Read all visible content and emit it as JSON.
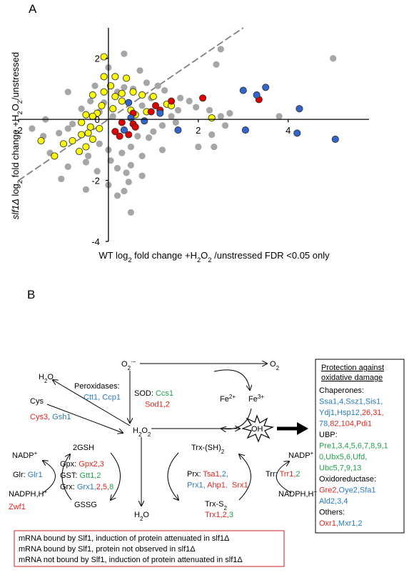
{
  "panel_labels": [
    "A",
    "B"
  ],
  "chart_data": {
    "type": "scatter",
    "x_label": [
      "WT log",
      "2",
      " fold change +H",
      "2",
      "O",
      "2",
      " /unstressed FDR <0.05 only"
    ],
    "y_label": [
      "slf1Δ",
      " log",
      "2",
      " fold change +H",
      "2",
      "O",
      "2",
      "/unstressed"
    ],
    "xlim": [
      -2,
      5.8
    ],
    "ylim": [
      -4,
      3
    ],
    "xticks": [
      -2,
      2,
      4
    ],
    "yticks": [
      -4,
      -2,
      0,
      2
    ],
    "identity_line": true,
    "series": [
      {
        "color": "#a6a6a6",
        "x": [
          5.0,
          2.5,
          2.4,
          0.0,
          0.35,
          0.7,
          0.35,
          0.85,
          1.1,
          -0.3,
          -0.9,
          -0.4,
          -0.6,
          0.2,
          0.55,
          1.25,
          1.6,
          1.8,
          1.95,
          2.25,
          2.5,
          2.7,
          2.6,
          1.5,
          1.2,
          1.0,
          0.9,
          1.4,
          0.75,
          -0.2,
          -0.8,
          -1.4,
          -1.7,
          -0.9,
          -1.1,
          -1.45,
          -0.2,
          0.0,
          0.3,
          0.5,
          0.75,
          0.05,
          0.2,
          0.5,
          0.4,
          0.75,
          0.45,
          0.0,
          -0.25,
          -0.5,
          -0.9,
          -1.05,
          -1.3,
          0.2,
          0.5,
          -0.5,
          1.2,
          2.0,
          2.3,
          2.35,
          0.65,
          -0.1,
          0.1,
          0.95,
          1.55,
          3.8,
          0.35,
          -0.45
        ],
        "values": [
          2.0,
          2.3,
          1.8,
          1.7,
          2.15,
          1.6,
          1.05,
          1.2,
          1.1,
          1.1,
          0.9,
          0.6,
          0.35,
          0.9,
          1.0,
          0.95,
          0.7,
          0.6,
          0.4,
          0.3,
          0.1,
          0.2,
          -0.2,
          -0.1,
          -0.2,
          -0.4,
          -0.6,
          0.1,
          0.45,
          0.25,
          -0.15,
          0.0,
          -0.3,
          -0.3,
          -0.45,
          -0.55,
          -0.8,
          -1.0,
          -1.1,
          -0.9,
          -1.2,
          -1.35,
          -1.6,
          -1.5,
          -1.75,
          -1.85,
          -2.05,
          -2.15,
          -1.7,
          -1.4,
          -1.55,
          -1.95,
          -1.1,
          -2.5,
          -3.05,
          -2.3,
          -1.0,
          -0.9,
          -0.5,
          -0.9,
          -0.55,
          0.55,
          0.1,
          0.7,
          0.3,
          0.1,
          -2.35,
          -1.2
        ]
      },
      {
        "color": "#ffff00",
        "edgecolor": "#333333",
        "x": [
          -0.1,
          0.15,
          -0.1,
          0.4,
          0.05,
          0.55,
          0.3,
          0.75,
          1.0,
          1.3,
          1.4,
          -0.35,
          -0.1,
          0.15,
          0.3,
          -0.15,
          0.1,
          -0.25,
          -0.5,
          -0.35,
          -0.6,
          -0.4,
          -0.2,
          -0.45,
          -0.6,
          -0.35,
          -0.8,
          -1.0,
          -1.5,
          -0.5,
          -0.65,
          -1.2,
          2.3,
          0.6,
          0.85,
          0.5
        ],
        "values": [
          2.05,
          1.4,
          1.4,
          1.35,
          1.1,
          0.9,
          0.85,
          0.8,
          0.75,
          0.5,
          0.45,
          0.8,
          0.9,
          0.75,
          0.6,
          0.45,
          0.35,
          0.2,
          0.15,
          0.1,
          -0.1,
          -0.25,
          -0.3,
          -0.45,
          -0.5,
          -0.65,
          -0.7,
          -0.8,
          -0.7,
          -0.9,
          -1.05,
          -1.2,
          0.05,
          0.15,
          0.25,
          0.3
        ]
      },
      {
        "color": "#e00000",
        "edgecolor": "#333333",
        "x": [
          2.1,
          0.95,
          1.05,
          1.15,
          0.55,
          0.3,
          0.55,
          0.6,
          0.15,
          0.25,
          0.45,
          3.35,
          1.4
        ],
        "values": [
          0.7,
          0.25,
          0.45,
          0.3,
          0.2,
          -0.1,
          -0.15,
          -0.25,
          -0.4,
          -0.55,
          -0.5,
          0.65,
          0.6
        ]
      },
      {
        "color": "#3366cc",
        "edgecolor": "#333333",
        "x": [
          3.0,
          3.5,
          3.3,
          4.25,
          3.05,
          4.2,
          5.05,
          1.55,
          1.15,
          0.45,
          0.8,
          0.5,
          0.35
        ],
        "values": [
          0.95,
          1.05,
          0.8,
          0.35,
          -0.35,
          -0.45,
          -0.65,
          -0.35,
          0.2,
          0.55,
          -0.05,
          0.05,
          -0.35
        ]
      }
    ]
  },
  "diagram": {
    "species": {
      "o2_radical": [
        "O",
        "2",
        "·−"
      ],
      "o2": [
        "O",
        "2"
      ],
      "h2o_top": [
        "H",
        "2",
        "O"
      ],
      "cys": [
        "Cys"
      ],
      "h2o2": [
        "H",
        "2",
        "O",
        "2"
      ],
      "fe2": [
        "Fe",
        "2+"
      ],
      "fe3": [
        "Fe",
        "3+"
      ],
      "oh": [
        "OH"
      ],
      "gsh": [
        "2GSH"
      ],
      "nadp_left": [
        "NADP",
        "+"
      ],
      "nadph_left": [
        "NADPH,H",
        "+"
      ],
      "gssg": [
        "GSSG"
      ],
      "h2o_bottom": [
        "H",
        "2",
        "O"
      ],
      "trx_sh": [
        "Trx-(SH)",
        "2"
      ],
      "trx_s": [
        "Trx-S",
        "2"
      ],
      "nadp_right": [
        "NADP",
        "+"
      ],
      "nadph_right": [
        "NADPH,H",
        "+"
      ]
    },
    "enzymes": {
      "peroxidases": {
        "label": "Peroxidases:",
        "lines": [
          [],
          [
            {
              "text": "Ctt1, Ccp1",
              "color": "#2a7bbf"
            }
          ]
        ]
      },
      "sod": {
        "label": "SOD: ",
        "lines": [
          [
            {
              "text": "Ccs1",
              "color": "#22a04b"
            }
          ],
          [
            {
              "text": "Sod1,2",
              "color": "#e0251f"
            }
          ]
        ]
      },
      "cys": {
        "lines": [
          [
            {
              "text": "Cys3,",
              "color": "#e0251f"
            },
            {
              "text": " Gsh1",
              "color": "#2a7bbf"
            }
          ]
        ]
      },
      "gpx": {
        "label": "Gpx: ",
        "lines": [
          [
            {
              "text": "Gpx2,3",
              "color": "#e0251f"
            }
          ]
        ]
      },
      "gst": {
        "label": "GST: ",
        "lines": [
          [
            {
              "text": "Gtt1,2",
              "color": "#22a04b"
            }
          ]
        ]
      },
      "grx": {
        "label": "Grx: ",
        "lines": [
          [
            {
              "text": "Grx1,",
              "color": "#2a7bbf"
            },
            {
              "text": "2,5,",
              "color": "#e0251f"
            },
            {
              "text": "8",
              "color": "#22a04b"
            }
          ]
        ]
      },
      "glr": {
        "label": "Glr: ",
        "lines": [
          [
            {
              "text": "Glr1",
              "color": "#2a7bbf"
            }
          ]
        ]
      },
      "zwf": {
        "lines": [
          [
            {
              "text": "Zwf1",
              "color": "#e0251f"
            }
          ]
        ]
      },
      "prx": {
        "label": "Prx: ",
        "lines": [
          [
            {
              "text": "Tsa1,",
              "color": "#e0251f"
            },
            {
              "text": "2,",
              "color": "#2a7bbf"
            }
          ],
          [
            {
              "text": "Prx1,",
              "color": "#2a7bbf"
            },
            {
              "text": " Ahp1.",
              "color": "#e0251f"
            },
            {
              "text": "  Srx1",
              "color": "#e0251f"
            }
          ]
        ]
      },
      "trr": {
        "label": "Trr: ",
        "lines": [
          [
            {
              "text": "Trr1,",
              "color": "#e0251f"
            },
            {
              "text": "2",
              "color": "#22a04b"
            }
          ]
        ]
      },
      "trx": {
        "lines": [
          [
            {
              "text": "Trx1,2,",
              "color": "#e0251f"
            },
            {
              "text": "3",
              "color": "#22a04b"
            }
          ]
        ]
      }
    },
    "protection": {
      "title": [
        "Protection against",
        "oxidative damage"
      ],
      "lines": [
        [
          {
            "text": "Chaperones:",
            "color": "#000000"
          }
        ],
        [
          {
            "text": "Ssa1,4,Ssz1,Sis1,",
            "color": "#2a7bbf"
          }
        ],
        [
          {
            "text": "Ydj1,Hsp12,",
            "color": "#2a7bbf"
          },
          {
            "text": "26,31,",
            "color": "#e0251f"
          }
        ],
        [
          {
            "text": "78,",
            "color": "#2a7bbf"
          },
          {
            "text": "82,104,",
            "color": "#e0251f"
          },
          {
            "text": "Pdi1",
            "color": "#e0251f"
          }
        ],
        [
          {
            "text": "UBP:",
            "color": "#000000"
          }
        ],
        [
          {
            "text": "Pre1,3,4,5,6,7,8,9,1",
            "color": "#22a04b"
          }
        ],
        [
          {
            "text": "0,Ubx5,6,Ufd,",
            "color": "#22a04b"
          }
        ],
        [
          {
            "text": "Ubc5,7,9,13",
            "color": "#22a04b"
          }
        ],
        [
          {
            "text": "Oxidoreductase:",
            "color": "#000000"
          }
        ],
        [
          {
            "text": "Gre2,",
            "color": "#e0251f"
          },
          {
            "text": "Oye2,Sfa1",
            "color": "#2a7bbf"
          }
        ],
        [
          {
            "text": "Ald2,3,4",
            "color": "#2a7bbf"
          }
        ],
        [
          {
            "text": "Others:",
            "color": "#000000"
          }
        ],
        [
          {
            "text": "Oxr1,",
            "color": "#e0251f"
          },
          {
            "text": "Mxr1,2",
            "color": "#2a7bbf"
          }
        ]
      ]
    },
    "legend": [
      {
        "text": "mRNA bound by Slf1, induction of protein attenuated in slf1Δ",
        "color": "#e0251f"
      },
      {
        "text": "mRNA bound by Slf1, protein not observed in slf1Δ",
        "color": "#22a04b"
      },
      {
        "text": "mRNA not bound by Slf1, induction of protein attenuated in slf1Δ",
        "color": "#2a7bbf"
      }
    ]
  }
}
